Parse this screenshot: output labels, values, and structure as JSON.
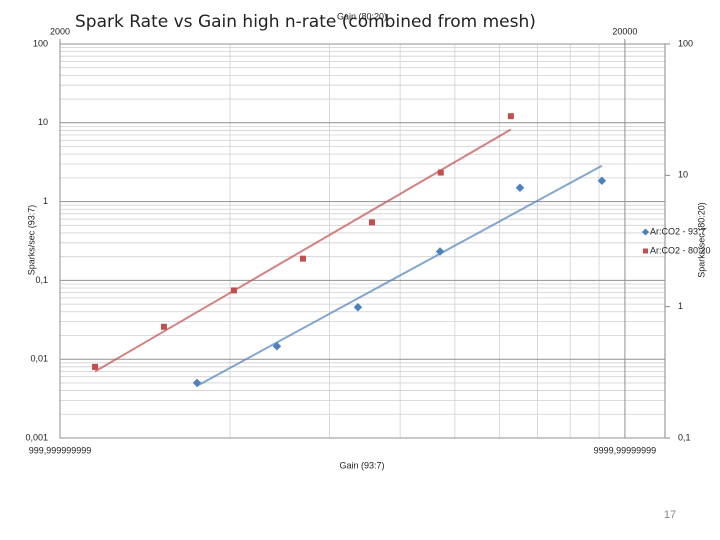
{
  "chart_data": {
    "type": "scatter",
    "title": "Spark Rate vs Gain high n-rate (combined from mesh)",
    "x_label": "Gain (93:7)",
    "x2_label": "Gain (80:20)",
    "y_label": "Sparks/sec (93:7)",
    "y2_label": "Sparks/sec (80:20)",
    "log_x": true,
    "log_y": true,
    "grid": true,
    "legend": "right",
    "trendline": true,
    "xlim": [
      999.999999999,
      11775
    ],
    "xticks": [
      {
        "value": 999.999999999,
        "label": "999,999999999"
      },
      {
        "value": 9999.99999999,
        "label": "9999,99999999"
      }
    ],
    "x2lim": [
      2000,
      23550
    ],
    "x2ticks": [
      2000,
      20000
    ],
    "ylim": [
      0.001,
      100
    ],
    "yticks": [
      {
        "value": 0.001,
        "label": "0,001"
      },
      {
        "value": 0.01,
        "label": "0,01"
      },
      {
        "value": 0.1,
        "label": "0,1"
      },
      1,
      10,
      100
    ],
    "y2lim": [
      0.1,
      100
    ],
    "y2ticks": [
      {
        "value": 0.1,
        "label": "0,1"
      },
      1,
      10,
      100
    ],
    "series": [
      {
        "name": "Ar:CO2 - 93:7",
        "color": "#4f81bd",
        "marker": "diamond",
        "x": [
          1748,
          2421,
          3368,
          4707,
          6520,
          9104
        ],
        "values": [
          0.005,
          0.0146,
          0.0457,
          0.233,
          1.5,
          1.84
        ]
      },
      {
        "name": "Ar:CO2 - 80:20",
        "color": "#c0504d",
        "marker": "square",
        "axis": "y2",
        "x": [
          2307,
          3055,
          4064,
          5384,
          7133,
          9441,
          12565
        ],
        "values": [
          0.348,
          0.703,
          1.33,
          2.32,
          4.38,
          10.5,
          28.2
        ]
      }
    ]
  },
  "page_number": "17"
}
